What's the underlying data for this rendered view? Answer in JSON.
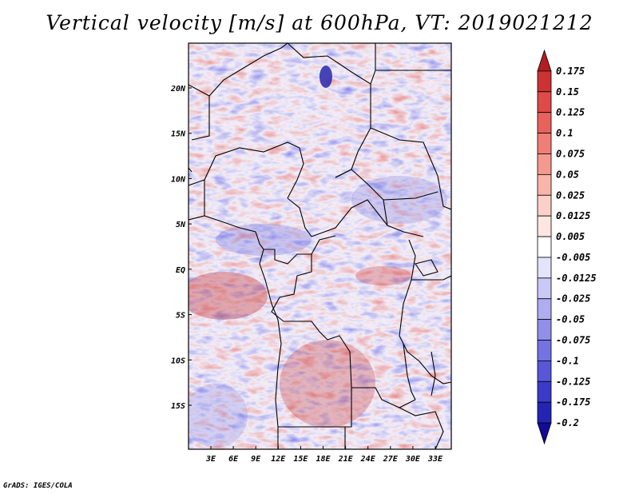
{
  "title": "Vertical velocity [m/s] at 600hPa, VT: 2019021212",
  "footer": "GrADS: IGES/COLA",
  "chart_data": {
    "type": "heatmap",
    "variable": "Vertical velocity",
    "units": "m/s",
    "level": "600hPa",
    "valid_time": "2019021212",
    "lon_range": [
      0,
      36
    ],
    "lat_range": [
      -20,
      25
    ],
    "y_ticks": [
      {
        "value": 20,
        "label": "20N"
      },
      {
        "value": 15,
        "label": "15N"
      },
      {
        "value": 10,
        "label": "10N"
      },
      {
        "value": 5,
        "label": "5N"
      },
      {
        "value": 0,
        "label": "EQ"
      },
      {
        "value": -5,
        "label": "5S"
      },
      {
        "value": -10,
        "label": "10S"
      },
      {
        "value": -15,
        "label": "15S"
      }
    ],
    "x_ticks": [
      {
        "value": 3,
        "label": "3E"
      },
      {
        "value": 6,
        "label": "6E"
      },
      {
        "value": 9,
        "label": "9E"
      },
      {
        "value": 12,
        "label": "12E"
      },
      {
        "value": 15,
        "label": "15E"
      },
      {
        "value": 18,
        "label": "18E"
      },
      {
        "value": 21,
        "label": "21E"
      },
      {
        "value": 24,
        "label": "24E"
      },
      {
        "value": 27,
        "label": "27E"
      },
      {
        "value": 30,
        "label": "30E"
      },
      {
        "value": 33,
        "label": "33E"
      }
    ],
    "colorbar": {
      "labels": [
        "0.175",
        "0.15",
        "0.125",
        "0.1",
        "0.075",
        "0.05",
        "0.025",
        "0.0125",
        "0.005",
        "-0.005",
        "-0.0125",
        "-0.025",
        "-0.05",
        "-0.075",
        "-0.1",
        "-0.125",
        "-0.175",
        "-0.2"
      ],
      "colors": [
        "#b31d22",
        "#cc3333",
        "#dd4a48",
        "#e8625d",
        "#f07e76",
        "#f5998f",
        "#f9b5ab",
        "#fcd0c8",
        "#fee6e1",
        "#ffffff",
        "#e3e3fb",
        "#c9c9f5",
        "#adadf0",
        "#9090ea",
        "#7373e2",
        "#5757d8",
        "#3b3bc8",
        "#2424b3",
        "#140a99"
      ]
    }
  }
}
